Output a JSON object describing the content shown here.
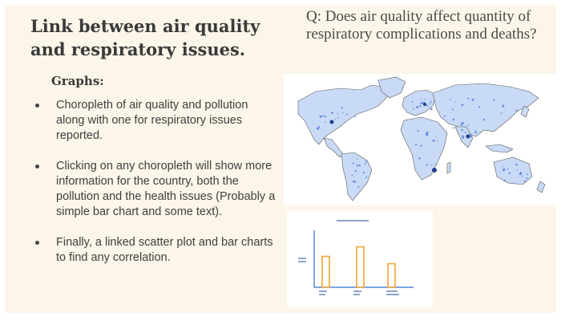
{
  "slide": {
    "title": "Link between air quality and respiratory issues.",
    "question": "Q: Does air quality affect quantity of respiratory complications and deaths?",
    "graphs_heading": "Graphs:",
    "bullets": [
      "Choropleth of air quality and pollution along with one for respiratory issues reported.",
      "Clicking on any choropleth will show more information for the country, both the pollution and the health issues (Probably a simple bar chart and some text).",
      "Finally, a linked scatter plot and bar charts to find any correlation."
    ]
  },
  "colors": {
    "slide_bg": "#fbf6e9",
    "map_fill": "#c9daf6",
    "map_dots": "#3f6fd6",
    "bar_orange": "#f0a43a",
    "axis_blue": "#2f6fd0"
  },
  "map": {
    "icon": "world-choropleth-map"
  },
  "mini_chart": {
    "type": "bar",
    "values": [
      0.55,
      0.72,
      0.42
    ]
  }
}
